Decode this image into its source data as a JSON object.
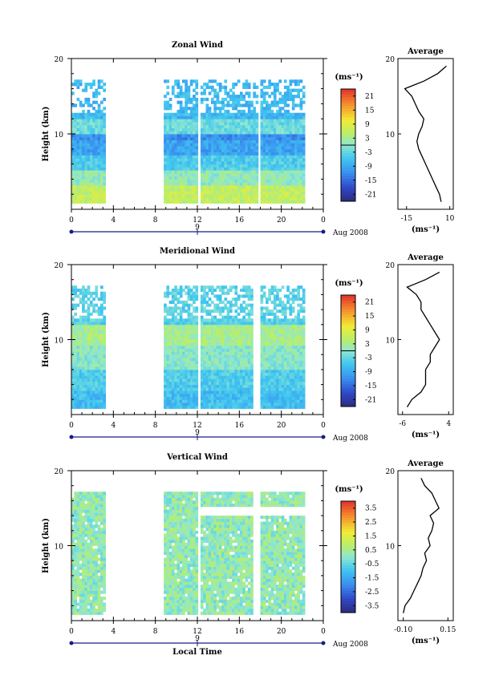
{
  "chart_data": [
    {
      "type": "heatmap",
      "title": "Zonal Wind",
      "ylabel": "Height (km)",
      "ylim": [
        0,
        20
      ],
      "yticks": [
        "20",
        "10"
      ],
      "xlim": [
        0,
        24
      ],
      "xticks": [
        "0",
        "4",
        "8",
        "12",
        "16",
        "20",
        "0"
      ],
      "day_label": "9",
      "date_label": "Aug 2008",
      "colorbar": {
        "unit": "(ms⁻¹)",
        "ticks": [
          "21",
          "15",
          "9",
          "3",
          "-3",
          "-9",
          "-15",
          "-21"
        ],
        "range": [
          -24,
          24
        ]
      },
      "data_segments_hours": [
        [
          0,
          3.2
        ],
        [
          8.8,
          12
        ],
        [
          12.3,
          17.6
        ],
        [
          18,
          22.2
        ]
      ],
      "profile": {
        "title": "Average",
        "xlabel": "(ms⁻¹)",
        "xticks": [
          "-15",
          "10"
        ],
        "xlim": [
          -20,
          12
        ],
        "height_km": [
          1,
          2,
          3,
          4,
          5,
          6,
          7,
          8,
          9,
          10,
          11,
          12,
          13,
          14,
          15,
          16,
          17,
          18,
          19
        ],
        "value_ms": [
          5,
          4,
          2,
          0,
          -2,
          -4,
          -6,
          -8,
          -9,
          -8,
          -6,
          -5,
          -8,
          -10,
          -12,
          -16,
          -5,
          3,
          8
        ]
      }
    },
    {
      "type": "heatmap",
      "title": "Meridional Wind",
      "ylabel": "Height (km)",
      "ylim": [
        0,
        20
      ],
      "yticks": [
        "20",
        "10"
      ],
      "xlim": [
        0,
        24
      ],
      "xticks": [
        "0",
        "4",
        "8",
        "12",
        "16",
        "20",
        "0"
      ],
      "day_label": "9",
      "date_label": "Aug 2008",
      "colorbar": {
        "unit": "(ms⁻¹)",
        "ticks": [
          "21",
          "15",
          "9",
          "3",
          "-3",
          "-9",
          "-15",
          "-21"
        ],
        "range": [
          -24,
          24
        ]
      },
      "data_segments_hours": [
        [
          0,
          3.2
        ],
        [
          8.8,
          12
        ],
        [
          12.3,
          17.3
        ],
        [
          18,
          22.2
        ]
      ],
      "profile": {
        "title": "Average",
        "xlabel": "(ms⁻¹)",
        "xticks": [
          "-6",
          "4"
        ],
        "xlim": [
          -7,
          5
        ],
        "height_km": [
          1,
          2,
          3,
          4,
          5,
          6,
          7,
          8,
          9,
          10,
          11,
          12,
          13,
          14,
          15,
          16,
          17,
          18,
          19
        ],
        "value_ms": [
          -5,
          -4,
          -2,
          -1,
          -1,
          -1,
          0,
          0,
          1,
          2,
          1,
          0,
          -1,
          -2,
          -2,
          -3,
          -5,
          -1,
          2
        ]
      }
    },
    {
      "type": "heatmap",
      "title": "Vertical Wind",
      "xlabel": "Local Time",
      "ylabel": "Height (km)",
      "ylim": [
        0,
        20
      ],
      "yticks": [
        "20",
        "10"
      ],
      "xlim": [
        0,
        24
      ],
      "xticks": [
        "0",
        "4",
        "8",
        "12",
        "16",
        "20",
        "0"
      ],
      "day_label": "9",
      "date_label": "Aug 2008",
      "colorbar": {
        "unit": "(ms⁻¹)",
        "ticks": [
          "3.5",
          "2.5",
          "1.5",
          "0.5",
          "-0.5",
          "-1.5",
          "-2.5",
          "-3.5"
        ],
        "range": [
          -4,
          4
        ]
      },
      "data_segments_hours": [
        [
          0,
          3.2
        ],
        [
          8.8,
          12
        ],
        [
          12.3,
          17.3
        ],
        [
          18,
          22.2
        ]
      ],
      "profile": {
        "title": "Average",
        "xlabel": "(ms⁻¹)",
        "xticks": [
          "-0.10",
          "0.15"
        ],
        "xlim": [
          -0.13,
          0.18
        ],
        "height_km": [
          1,
          2,
          3,
          4,
          5,
          6,
          7,
          8,
          9,
          10,
          11,
          12,
          13,
          14,
          15,
          16,
          17,
          18,
          19
        ],
        "value_ms": [
          -0.1,
          -0.09,
          -0.06,
          -0.04,
          -0.02,
          0.0,
          0.01,
          0.03,
          0.02,
          0.05,
          0.04,
          0.06,
          0.07,
          0.05,
          0.1,
          0.08,
          0.06,
          0.02,
          0.0
        ]
      }
    }
  ]
}
